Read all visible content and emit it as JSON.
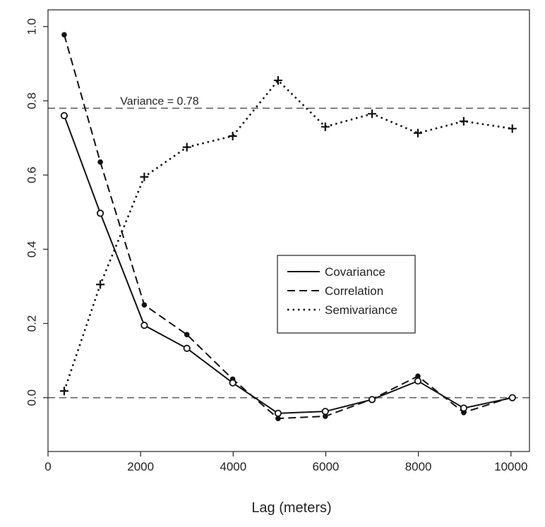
{
  "chart_data": {
    "type": "line",
    "title": "",
    "xlabel": "Lag (meters)",
    "ylabel": "",
    "xlim": [
      0,
      10400
    ],
    "ylim": [
      -0.145,
      1.045
    ],
    "x_ticks": [
      "0",
      "2000",
      "4000",
      "6000",
      "8000",
      "10000"
    ],
    "y_ticks": [
      "0.0",
      "0.2",
      "0.4",
      "0.6",
      "0.8",
      "1.0"
    ],
    "reference_lines": [
      {
        "y": 0.78,
        "label": "Variance = 0.78"
      },
      {
        "y": 0.0,
        "label": ""
      }
    ],
    "x": [
      350,
      1130,
      2080,
      3000,
      3990,
      4970,
      5990,
      7000,
      7990,
      8980,
      10030
    ],
    "series": [
      {
        "name": "Covariance",
        "style": "solid",
        "marker": "open-circle",
        "values": [
          0.76,
          0.497,
          0.195,
          0.133,
          0.04,
          -0.042,
          -0.037,
          -0.005,
          0.045,
          -0.028,
          0.0
        ]
      },
      {
        "name": "Correlation",
        "style": "dashed",
        "marker": "filled-circle",
        "values": [
          0.978,
          0.635,
          0.25,
          0.17,
          0.05,
          -0.056,
          -0.05,
          -0.004,
          0.058,
          -0.04,
          0.002
        ]
      },
      {
        "name": "Semivariance",
        "style": "dotted",
        "marker": "plus",
        "values": [
          0.018,
          0.305,
          0.595,
          0.675,
          0.705,
          0.855,
          0.73,
          0.765,
          0.713,
          0.745,
          0.725
        ]
      }
    ],
    "legend": {
      "position": "center-right"
    },
    "grid": false
  }
}
